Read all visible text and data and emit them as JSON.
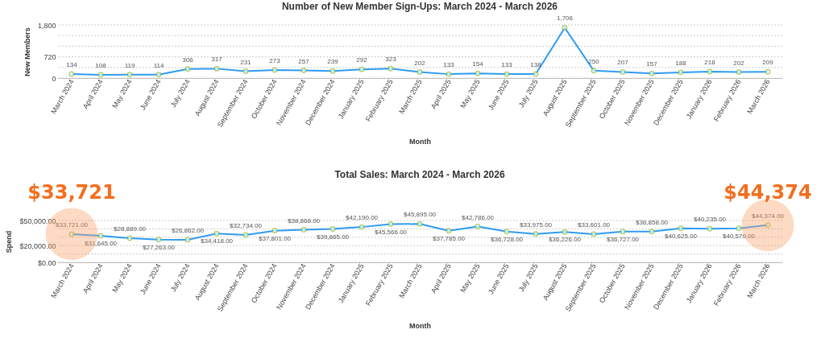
{
  "chart_data": [
    {
      "type": "line",
      "title": "Number of New Member Sign-Ups: March 2024 - March 2026",
      "xlabel": "Month",
      "ylabel": "New Members",
      "categories": [
        "March 2024",
        "April 2024",
        "May 2024",
        "June 2024",
        "July 2024",
        "August 2024",
        "September 2024",
        "October 2024",
        "November 2024",
        "December 2024",
        "January 2025",
        "February 2025",
        "March 2025",
        "April 2025",
        "May 2025",
        "June 2025",
        "July 2025",
        "August 2025",
        "September 2025",
        "October 2025",
        "November 2025",
        "December 2025",
        "January 2026",
        "February 2026",
        "March 2026"
      ],
      "series": [
        {
          "color": "#2f9bf0",
          "values": [
            134,
            108,
            119,
            114,
            306,
            317,
            231,
            273,
            257,
            239,
            292,
            323,
            202,
            133,
            154,
            133,
            138,
            1706,
            250,
            207,
            157,
            188,
            218,
            202,
            209
          ],
          "value_labels": [
            "134",
            "108",
            "119",
            "114",
            "306",
            "317",
            "231",
            "273",
            "257",
            "239",
            "292",
            "323",
            "202",
            "133",
            "154",
            "133",
            "138",
            "1,706",
            "250",
            "207",
            "157",
            "188",
            "218",
            "202",
            "209"
          ]
        }
      ],
      "ylim": [
        0,
        1800
      ],
      "yticks": [
        0,
        {
          "value": 360,
          "label": null
        },
        720,
        {
          "value": 1080,
          "label": null
        },
        {
          "value": 1440,
          "label": null
        },
        {
          "value": 1800,
          "label": "1,800"
        }
      ],
      "grid": "y",
      "marker": "circle",
      "line_style": "solid"
    },
    {
      "type": "line",
      "title": "Total Sales: March 2024 - March 2026",
      "xlabel": "Month",
      "ylabel": "Spend",
      "categories": [
        "March 2024",
        "April 2024",
        "May 2024",
        "June 2024",
        "July 2024",
        "August 2024",
        "September 2024",
        "October 2024",
        "November 2024",
        "December 2024",
        "January 2025",
        "February 2025",
        "March 2025",
        "April 2025",
        "May 2025",
        "June 2025",
        "July 2025",
        "August 2025",
        "September 2025",
        "October 2025",
        "November 2025",
        "December 2025",
        "January 2026",
        "February 2026",
        "March 2026"
      ],
      "series": [
        {
          "color": "#2f9bf0",
          "values": [
            33721,
            31645,
            28889,
            27263,
            26862,
            34418,
            32734,
            37801,
            38868,
            39865,
            42190,
            45566,
            45895,
            37785,
            42786,
            36728,
            33975,
            36226,
            33601,
            36727,
            36858,
            40625,
            40235,
            40579,
            44374
          ],
          "value_labels": [
            "$33,721.00",
            "$31,645.00",
            "$28,889.00",
            "$27,263.00",
            "$26,862.00",
            "$34,418.00",
            "$32,734.00",
            "$37,801.00",
            "$38,868.00",
            "$39,865.00",
            "$42,190.00",
            "$45,566.00",
            "$45,895.00",
            "$37,785.00",
            "$42,786.00",
            "$36,728.00",
            "$33,975.00",
            "$36,226.00",
            "$33,601.00",
            "$36,727.00",
            "$36,858.00",
            "$40,625.00",
            "$40,235.00",
            "$40,579.00",
            "$44,374.00"
          ]
        }
      ],
      "ylim": [
        0,
        50000
      ],
      "yticks": [
        {
          "value": 0,
          "label": "$0.00"
        },
        {
          "value": 10000,
          "label": null
        },
        {
          "value": 20000,
          "label": "$20,000.00"
        },
        {
          "value": 30000,
          "label": null
        },
        {
          "value": 40000,
          "label": null
        },
        {
          "value": 50000,
          "label": "$50,000.00"
        }
      ],
      "grid": "y",
      "marker": "circle",
      "line_style": "solid",
      "annotations": [
        {
          "text": "$33,721",
          "x": "March 2024",
          "y": 33721
        },
        {
          "text": "$44,374",
          "x": "March 2026",
          "y": 44374
        }
      ]
    }
  ]
}
